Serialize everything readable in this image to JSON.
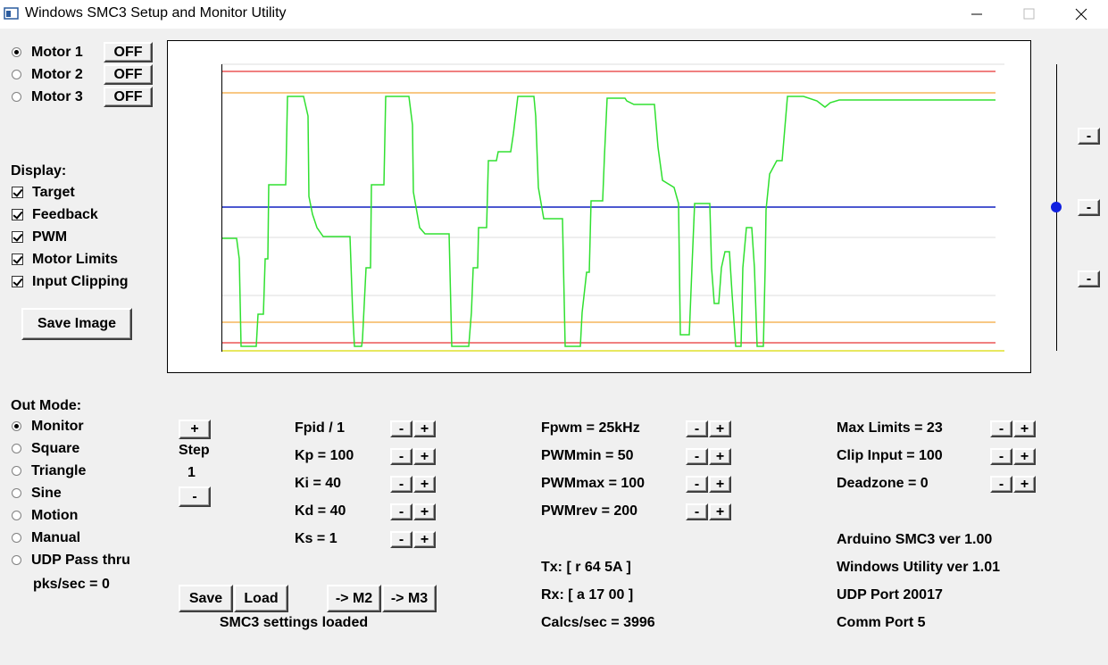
{
  "window": {
    "title": "Windows SMC3 Setup and Monitor Utility"
  },
  "motors": [
    {
      "label": "Motor 1",
      "button": "OFF",
      "selected": true
    },
    {
      "label": "Motor 2",
      "button": "OFF",
      "selected": false
    },
    {
      "label": "Motor 3",
      "button": "OFF",
      "selected": false
    }
  ],
  "display": {
    "heading": "Display:",
    "options": [
      {
        "label": "Target",
        "checked": true
      },
      {
        "label": "Feedback",
        "checked": true
      },
      {
        "label": "PWM",
        "checked": true
      },
      {
        "label": "Motor Limits",
        "checked": true
      },
      {
        "label": "Input Clipping",
        "checked": true
      }
    ],
    "save_button": "Save Image"
  },
  "out_mode": {
    "heading": "Out Mode:",
    "options": [
      {
        "label": "Monitor",
        "selected": true
      },
      {
        "label": "Square",
        "selected": false
      },
      {
        "label": "Triangle",
        "selected": false
      },
      {
        "label": "Sine",
        "selected": false
      },
      {
        "label": "Motion",
        "selected": false
      },
      {
        "label": "Manual",
        "selected": false
      },
      {
        "label": "UDP Pass thru",
        "selected": false
      }
    ],
    "rate": "pks/sec = 0"
  },
  "step": {
    "plus": "+",
    "label": "Step",
    "value": "1",
    "minus": "-"
  },
  "param_columns": [
    [
      {
        "label": "Fpid / 1",
        "minus": "-",
        "plus": "+"
      },
      {
        "label": "Kp = 100",
        "minus": "-",
        "plus": "+"
      },
      {
        "label": "Ki = 40",
        "minus": "-",
        "plus": "+"
      },
      {
        "label": "Kd = 40",
        "minus": "-",
        "plus": "+"
      },
      {
        "label": "Ks = 1",
        "minus": "-",
        "plus": "+"
      }
    ],
    [
      {
        "label": "Fpwm = 25kHz",
        "minus": "-",
        "plus": "+"
      },
      {
        "label": "PWMmin = 50",
        "minus": "-",
        "plus": "+"
      },
      {
        "label": "PWMmax = 100",
        "minus": "-",
        "plus": "+"
      },
      {
        "label": "PWMrev = 200",
        "minus": "-",
        "plus": "+"
      }
    ],
    [
      {
        "label": "Max Limits = 23",
        "minus": "-",
        "plus": "+"
      },
      {
        "label": "Clip Input = 100",
        "minus": "-",
        "plus": "+"
      },
      {
        "label": "Deadzone = 0",
        "minus": "-",
        "plus": "+"
      }
    ]
  ],
  "comms": [
    "Tx: [ r 64 5A ]",
    "Rx: [ a 17 00 ]",
    "Calcs/sec = 3996"
  ],
  "info": [
    "Arduino SMC3 ver 1.00",
    "Windows Utility ver 1.01",
    "UDP Port 20017",
    "Comm Port 5"
  ],
  "file_buttons": [
    "Save",
    "Load",
    "-> M2",
    "-> M3"
  ],
  "file_status": "SMC3 settings loaded",
  "scale_buttons": [
    "-",
    "-",
    "-"
  ]
}
